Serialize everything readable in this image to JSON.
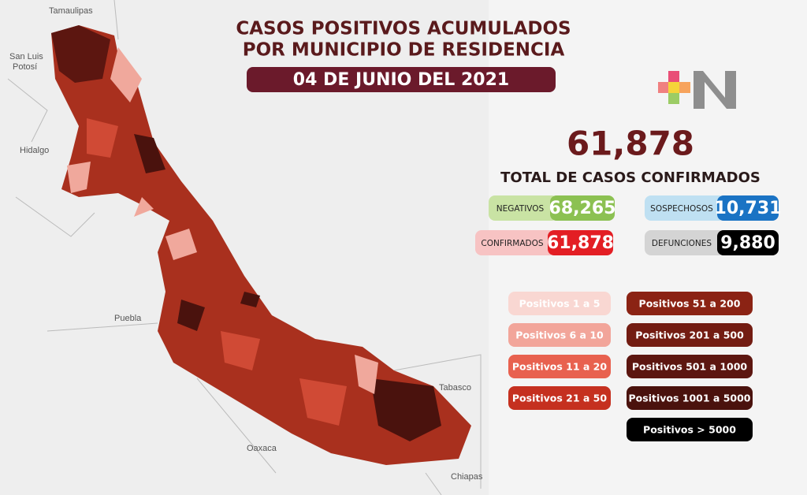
{
  "map_labels": {
    "tamaulipas": "Tamaulipas",
    "san_luis_potosi": [
      "San Luis",
      "Potosí"
    ],
    "hidalgo": "Hidalgo",
    "puebla": "Puebla",
    "oaxaca": "Oaxaca",
    "tabasco": "Tabasco",
    "chiapas": "Chiapas"
  },
  "header": {
    "title": [
      "CASOS POSITIVOS ACUMULADOS",
      "POR MUNICIPIO DE RESIDENCIA"
    ],
    "date": "04 DE JUNIO DEL 2021"
  },
  "total": {
    "value": "61,878",
    "label": "TOTAL DE CASOS CONFIRMADOS"
  },
  "stats": [
    {
      "label": "NEGATIVOS",
      "value": "68,265"
    },
    {
      "label": "SOSPECHOSOS",
      "value": "10,731"
    },
    {
      "label": "CONFIRMADOS",
      "value": "61,878"
    },
    {
      "label": "DEFUNCIONES",
      "value": "9,880"
    }
  ],
  "legend": [
    "Positivos 1 a 5",
    "Positivos 6 a 10",
    "Positivos 11 a 20",
    "Positivos 21 a 50",
    "Positivos 51 a 200",
    "Positivos 201 a 500",
    "Positivos 501 a 1000",
    "Positivos 1001 a 5000",
    "Positivos > 5000"
  ]
}
